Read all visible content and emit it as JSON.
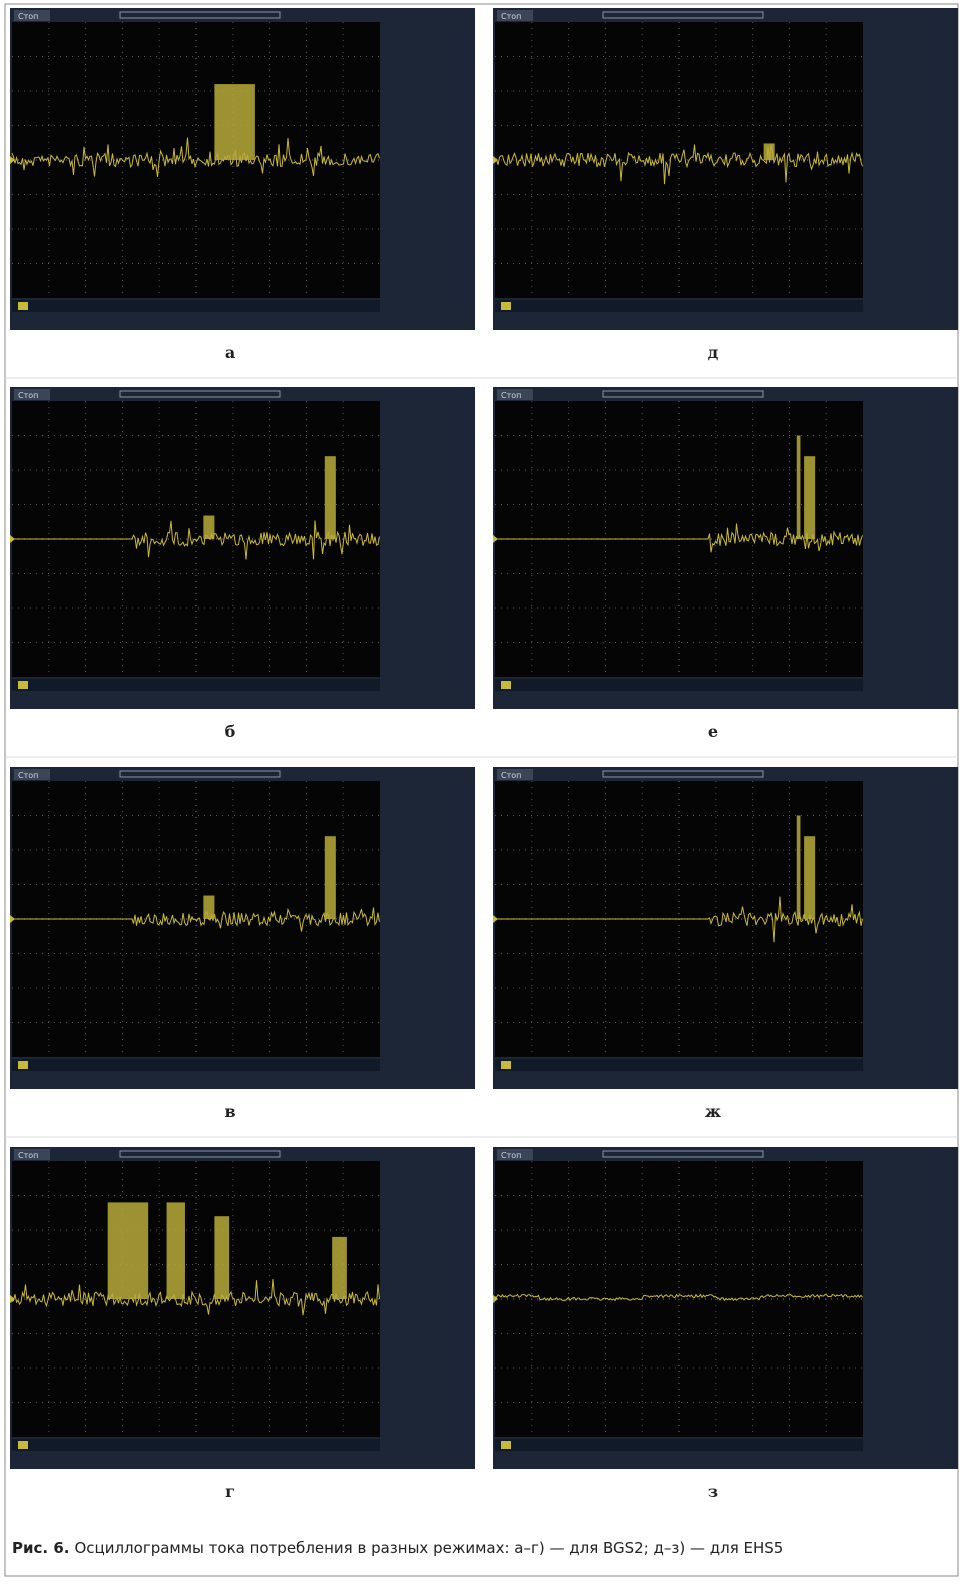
{
  "figure": {
    "panels": [
      {
        "label": "а",
        "status": "Стоп"
      },
      {
        "label": "д",
        "status": "Стоп"
      },
      {
        "label": "б",
        "status": "Стоп"
      },
      {
        "label": "е",
        "status": "Стоп"
      },
      {
        "label": "в",
        "status": "Стоп"
      },
      {
        "label": "ж",
        "status": "Стоп"
      },
      {
        "label": "г",
        "status": "Стоп"
      },
      {
        "label": "з",
        "status": "Стоп"
      }
    ],
    "caption": {
      "prefix": "Рис. 6.",
      "text": "Осциллограммы тока потребления в разных режимах: а–г) — для BGS2; д–з) — для EHS5"
    }
  }
}
